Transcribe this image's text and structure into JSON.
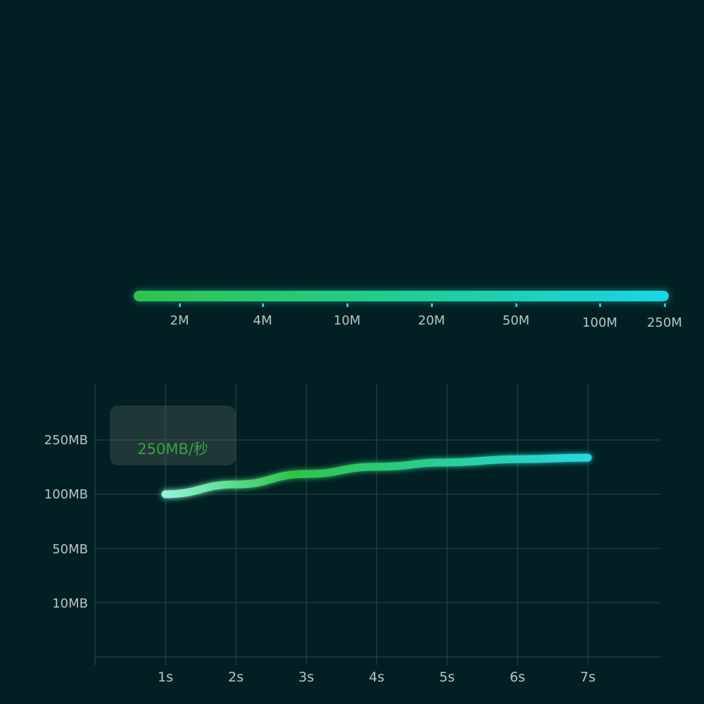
{
  "slider": {
    "labels": [
      "2M",
      "4M",
      "10M",
      "20M",
      "50M",
      "100M",
      "250M"
    ],
    "selected": "250M",
    "fill_fraction": 1.0,
    "colors": {
      "start": "#2fc44a",
      "end": "#17d6e8"
    }
  },
  "tooltip": {
    "value": "250MB/秒"
  },
  "chart_data": {
    "type": "line",
    "x": [
      "1s",
      "2s",
      "3s",
      "4s",
      "5s",
      "6s",
      "7s"
    ],
    "y_ticks": [
      "10MB",
      "50MB",
      "100MB",
      "250MB"
    ],
    "series": [
      {
        "values": [
          100,
          127,
          156,
          176,
          188,
          197,
          201
        ]
      }
    ],
    "grid": true,
    "colors": {
      "line_start": "#8ff5d8",
      "line_mid": "#2fc44a",
      "line_end": "#25d8e0",
      "grid": "#2c4a4a",
      "axis_text": "#b9c4c4"
    }
  }
}
